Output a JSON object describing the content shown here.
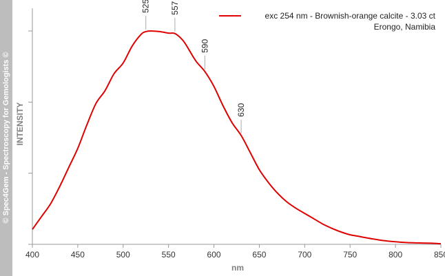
{
  "watermark": "© Spec4Gem - Spectroscopy for Gemologists ©",
  "chart_data": {
    "type": "line",
    "xlabel": "nm",
    "ylabel": "INTENSITY",
    "xlim": [
      400,
      850
    ],
    "ylim": [
      0,
      1
    ],
    "x_ticks": [
      400,
      450,
      500,
      550,
      600,
      650,
      700,
      750,
      800,
      850
    ],
    "y_tick_labels_visible": false,
    "grid": false,
    "legend_position": "top-right",
    "color": "#e00000",
    "series": [
      {
        "name": "exc 254 nm - Brownish-orange calcite - 3.03 ct",
        "name_line2": "Erongo, Namibia",
        "x": [
          400,
          410,
          420,
          430,
          440,
          450,
          460,
          470,
          480,
          490,
          500,
          510,
          520,
          525,
          530,
          540,
          550,
          557,
          565,
          570,
          580,
          590,
          600,
          610,
          620,
          630,
          640,
          650,
          660,
          670,
          680,
          690,
          700,
          710,
          720,
          730,
          740,
          750,
          760,
          770,
          780,
          790,
          800,
          810,
          820,
          830,
          840,
          850
        ],
        "y": [
          0.07,
          0.13,
          0.19,
          0.27,
          0.36,
          0.45,
          0.56,
          0.66,
          0.72,
          0.8,
          0.85,
          0.93,
          0.985,
          0.997,
          1.0,
          0.997,
          0.99,
          0.988,
          0.96,
          0.93,
          0.86,
          0.81,
          0.74,
          0.65,
          0.57,
          0.51,
          0.43,
          0.35,
          0.29,
          0.24,
          0.2,
          0.17,
          0.145,
          0.12,
          0.095,
          0.075,
          0.058,
          0.045,
          0.037,
          0.029,
          0.022,
          0.016,
          0.012,
          0.009,
          0.007,
          0.006,
          0.005,
          0.003
        ]
      }
    ],
    "annotations": [
      {
        "x": 525,
        "label": "525"
      },
      {
        "x": 557,
        "label": "557"
      },
      {
        "x": 590,
        "label": "590"
      },
      {
        "x": 630,
        "label": "630"
      }
    ]
  }
}
